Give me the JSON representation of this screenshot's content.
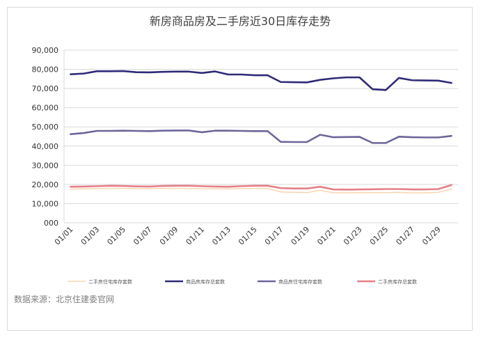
{
  "chart_data": {
    "type": "line",
    "title": "新房商品房及二手房近30日库存走势",
    "xlabel": "",
    "ylabel": "",
    "x_tick_labels": [
      "01/01",
      "01/03",
      "01/05",
      "01/07",
      "01/09",
      "01/11",
      "01/13",
      "01/15",
      "01/17",
      "01/19",
      "01/21",
      "01/23",
      "01/25",
      "01/27",
      "01/29"
    ],
    "x": [
      "01/01",
      "01/02",
      "01/03",
      "01/04",
      "01/05",
      "01/06",
      "01/07",
      "01/08",
      "01/09",
      "01/10",
      "01/11",
      "01/12",
      "01/13",
      "01/14",
      "01/15",
      "01/16",
      "01/17",
      "01/18",
      "01/19",
      "01/20",
      "01/21",
      "01/22",
      "01/23",
      "01/24",
      "01/25",
      "01/26",
      "01/27",
      "01/28",
      "01/29",
      "01/30"
    ],
    "y_tick_labels": [
      "000",
      "10,000",
      "20,000",
      "30,000",
      "40,000",
      "50,000",
      "60,000",
      "70,000",
      "80,000",
      "90,000"
    ],
    "ylim": [
      0,
      90000
    ],
    "grid": true,
    "legend_position": "bottom",
    "series": [
      {
        "name": "二手房住宅库存套数",
        "color": "#f5d5b0",
        "values": [
          17600,
          17700,
          17800,
          17900,
          17900,
          17800,
          17800,
          17900,
          17900,
          17900,
          17800,
          17700,
          17700,
          17800,
          17900,
          17900,
          16100,
          15900,
          15800,
          16900,
          15700,
          15600,
          15800,
          15700,
          15700,
          15900,
          15600,
          15600,
          15900,
          17600
        ]
      },
      {
        "name": "商品房库存总套数",
        "color": "#2e2a78",
        "values": [
          77400,
          77800,
          79000,
          79000,
          79100,
          78500,
          78400,
          78700,
          78800,
          78800,
          78100,
          78900,
          77300,
          77300,
          76900,
          76900,
          73400,
          73300,
          73200,
          74500,
          75300,
          75800,
          75800,
          69600,
          69200,
          75500,
          74300,
          74200,
          74100,
          72900
        ]
      },
      {
        "name": "商品房住宅库存套数",
        "color": "#6b6699",
        "values": [
          46200,
          46800,
          47900,
          47900,
          48000,
          47900,
          47800,
          48000,
          48100,
          48100,
          47200,
          48000,
          48000,
          47900,
          47800,
          47800,
          42200,
          42100,
          42100,
          45900,
          44600,
          44700,
          44800,
          41600,
          41600,
          44900,
          44600,
          44500,
          44500,
          45300
        ]
      },
      {
        "name": "二手房库存总套数",
        "color": "#e57f86",
        "values": [
          18800,
          18900,
          19100,
          19300,
          19200,
          19000,
          18900,
          19200,
          19300,
          19300,
          19100,
          18900,
          18800,
          19100,
          19300,
          19300,
          18100,
          17900,
          17900,
          18800,
          17400,
          17300,
          17400,
          17500,
          17600,
          17600,
          17400,
          17400,
          17600,
          19700
        ]
      }
    ]
  },
  "source": {
    "label": "数据来源：北京住建委官网"
  }
}
